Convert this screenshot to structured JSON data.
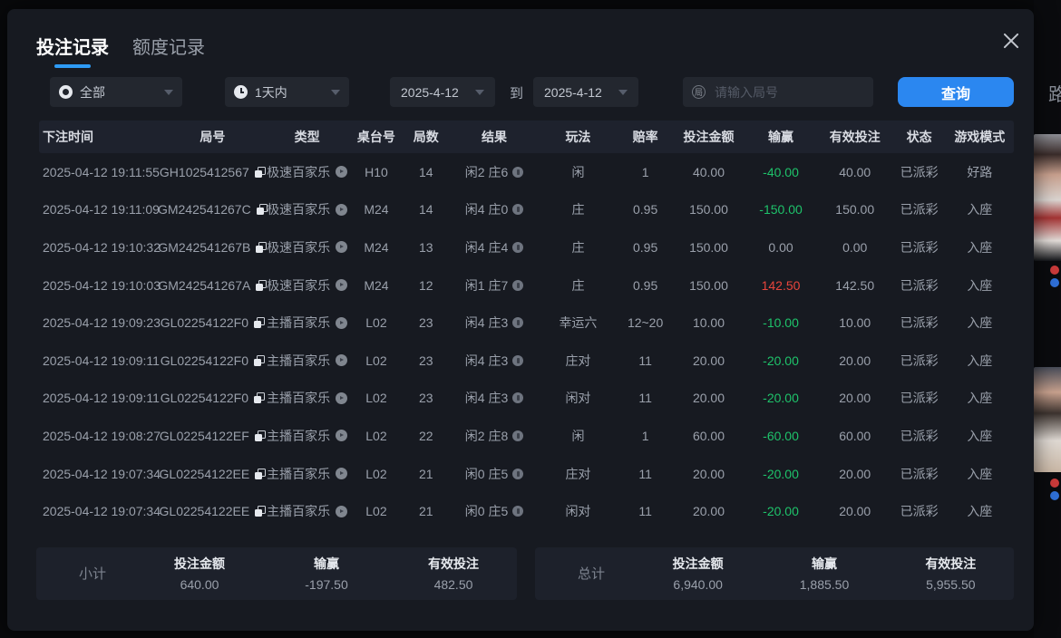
{
  "tabs": [
    {
      "label": "投注记录",
      "active": true
    },
    {
      "label": "额度记录",
      "active": false
    }
  ],
  "filters": {
    "type_select": {
      "value": "全部",
      "icon": "record-target-icon"
    },
    "range_select": {
      "value": "1天内",
      "icon": "clock-icon"
    },
    "date_from": "2025-4-12",
    "to_label": "到",
    "date_to": "2025-4-12",
    "search": {
      "placeholder": "请输入局号",
      "icon_char": "局"
    },
    "query_button": "查询"
  },
  "table": {
    "headers": [
      "下注时间",
      "局号",
      "类型",
      "桌台号",
      "局数",
      "结果",
      "玩法",
      "赔率",
      "投注金额",
      "输赢",
      "有效投注",
      "状态",
      "游戏模式"
    ],
    "rows": [
      {
        "time": "2025-04-12 19:11:55",
        "game_no": "GH1025412567",
        "type": "极速百家乐",
        "table_no": "H10",
        "rounds": "14",
        "result": "闲2 庄6",
        "play": "闲",
        "odds": "1",
        "bet": "40.00",
        "win": "-40.00",
        "valid": "40.00",
        "status": "已派彩",
        "mode": "好路"
      },
      {
        "time": "2025-04-12 19:11:09",
        "game_no": "GM242541267C",
        "type": "极速百家乐",
        "table_no": "M24",
        "rounds": "14",
        "result": "闲4 庄0",
        "play": "庄",
        "odds": "0.95",
        "bet": "150.00",
        "win": "-150.00",
        "valid": "150.00",
        "status": "已派彩",
        "mode": "入座"
      },
      {
        "time": "2025-04-12 19:10:32",
        "game_no": "GM242541267B",
        "type": "极速百家乐",
        "table_no": "M24",
        "rounds": "13",
        "result": "闲4 庄4",
        "play": "庄",
        "odds": "0.95",
        "bet": "150.00",
        "win": "0.00",
        "valid": "0.00",
        "status": "已派彩",
        "mode": "入座"
      },
      {
        "time": "2025-04-12 19:10:03",
        "game_no": "GM242541267A",
        "type": "极速百家乐",
        "table_no": "M24",
        "rounds": "12",
        "result": "闲1 庄7",
        "play": "庄",
        "odds": "0.95",
        "bet": "150.00",
        "win": "142.50",
        "valid": "142.50",
        "status": "已派彩",
        "mode": "入座"
      },
      {
        "time": "2025-04-12 19:09:23",
        "game_no": "GL02254122F0",
        "type": "主播百家乐",
        "table_no": "L02",
        "rounds": "23",
        "result": "闲4 庄3",
        "play": "幸运六",
        "odds": "12~20",
        "bet": "10.00",
        "win": "-10.00",
        "valid": "10.00",
        "status": "已派彩",
        "mode": "入座"
      },
      {
        "time": "2025-04-12 19:09:11",
        "game_no": "GL02254122F0",
        "type": "主播百家乐",
        "table_no": "L02",
        "rounds": "23",
        "result": "闲4 庄3",
        "play": "庄对",
        "odds": "11",
        "bet": "20.00",
        "win": "-20.00",
        "valid": "20.00",
        "status": "已派彩",
        "mode": "入座"
      },
      {
        "time": "2025-04-12 19:09:11",
        "game_no": "GL02254122F0",
        "type": "主播百家乐",
        "table_no": "L02",
        "rounds": "23",
        "result": "闲4 庄3",
        "play": "闲对",
        "odds": "11",
        "bet": "20.00",
        "win": "-20.00",
        "valid": "20.00",
        "status": "已派彩",
        "mode": "入座"
      },
      {
        "time": "2025-04-12 19:08:27",
        "game_no": "GL02254122EF",
        "type": "主播百家乐",
        "table_no": "L02",
        "rounds": "22",
        "result": "闲2 庄8",
        "play": "闲",
        "odds": "1",
        "bet": "60.00",
        "win": "-60.00",
        "valid": "60.00",
        "status": "已派彩",
        "mode": "入座"
      },
      {
        "time": "2025-04-12 19:07:34",
        "game_no": "GL02254122EE",
        "type": "主播百家乐",
        "table_no": "L02",
        "rounds": "21",
        "result": "闲0 庄5",
        "play": "庄对",
        "odds": "11",
        "bet": "20.00",
        "win": "-20.00",
        "valid": "20.00",
        "status": "已派彩",
        "mode": "入座"
      },
      {
        "time": "2025-04-12 19:07:34",
        "game_no": "GL02254122EE",
        "type": "主播百家乐",
        "table_no": "L02",
        "rounds": "21",
        "result": "闲0 庄5",
        "play": "闲对",
        "odds": "11",
        "bet": "20.00",
        "win": "-20.00",
        "valid": "20.00",
        "status": "已派彩",
        "mode": "入座"
      }
    ]
  },
  "summary": {
    "subtotal": {
      "label": "小计",
      "bet_label": "投注金额",
      "bet": "640.00",
      "win_label": "输赢",
      "win": "-197.50",
      "valid_label": "有效投注",
      "valid": "482.50"
    },
    "total": {
      "label": "总计",
      "bet_label": "投注金额",
      "bet": "6,940.00",
      "win_label": "输赢",
      "win": "1,885.50",
      "valid_label": "有效投注",
      "valid": "5,955.50"
    }
  },
  "background": {
    "partial_text": "路"
  },
  "colors": {
    "accent_blue": "#2b87f0",
    "tab_underline_blue": "#2e9bf5",
    "loss_green": "#1ec26a",
    "win_red": "#e8453c"
  }
}
